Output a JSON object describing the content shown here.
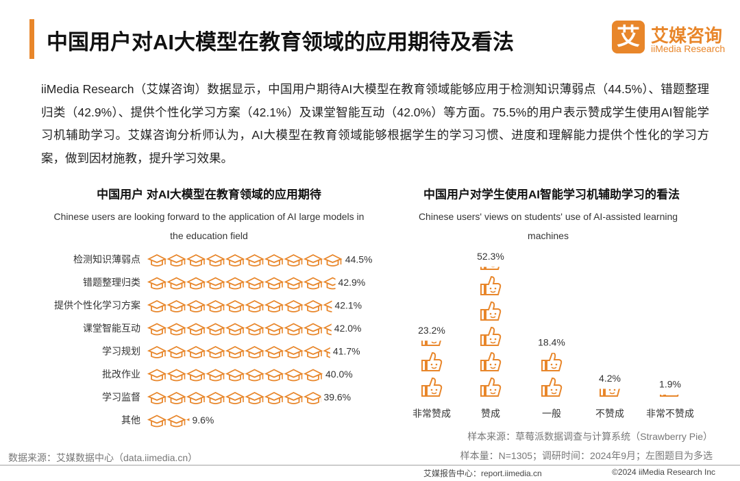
{
  "header": {
    "title": "中国用户对AI大模型在教育领域的应用期待及看法",
    "logo_mark": "艾",
    "logo_cn": "艾媒咨询",
    "logo_en": "iiMedia Research"
  },
  "paragraph": "iiMedia Research（艾媒咨询）数据显示，中国用户期待AI大模型在教育领域能够应用于检测知识薄弱点（44.5%）、错题整理归类（42.9%）、提供个性化学习方案（42.1%）及课堂智能互动（42.0%）等方面。75.5%的用户表示赞成学生使用AI智能学习机辅助学习。艾媒咨询分析师认为，AI大模型在教育领域能够根据学生的学习习惯、进度和理解能力提供个性化的学习方案，做到因材施教，提升学习效果。",
  "chart_data": [
    {
      "type": "pictograph-bar",
      "title": "中国用户 对AI大模型在教育领域的应用期待",
      "subtitle": "Chinese users are looking forward to the application of AI large models in the education field",
      "categories": [
        "检测知识薄弱点",
        "错题整理归类",
        "提供个性化学习方案",
        "课堂智能互动",
        "学习规划",
        "批改作业",
        "学习监督",
        "其他"
      ],
      "values": [
        44.5,
        42.9,
        42.1,
        42.0,
        41.7,
        40.0,
        39.6,
        9.6
      ],
      "value_labels": [
        "44.5%",
        "42.9%",
        "42.1%",
        "42.0%",
        "41.7%",
        "40.0%",
        "39.6%",
        "9.6%"
      ],
      "color": "#e8862a"
    },
    {
      "type": "pictograph-column",
      "title": "中国用户对学生使用AI智能学习机辅助学习的看法",
      "subtitle": "Chinese users' views on students' use of AI-assisted learning machines",
      "categories": [
        "非常赞成",
        "赞成",
        "一般",
        "不赞成",
        "非常不赞成"
      ],
      "values": [
        23.2,
        52.3,
        18.4,
        4.2,
        1.9
      ],
      "value_labels": [
        "23.2%",
        "52.3%",
        "18.4%",
        "4.2%",
        "1.9%"
      ],
      "color": "#e8862a"
    }
  ],
  "notes": {
    "sample_source": "样本来源：草莓派数据调查与计算系统（Strawberry Pie）",
    "sample_size": "样本量：N=1305；调研时间：2024年9月；左图题目为多选",
    "data_source": "数据来源：艾媒数据中心（data.iimedia.cn）"
  },
  "footer": {
    "report_center": "艾媒报告中心：report.iimedia.cn",
    "copyright": "©2024 iiMedia Research Inc"
  }
}
